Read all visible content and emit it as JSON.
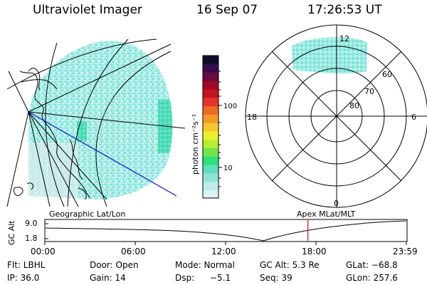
{
  "header": {
    "instrument": "Ultraviolet Imager",
    "date": "16 Sep 07",
    "time": "17:26:53 UT"
  },
  "colorbar": {
    "unit_label": "photon cm⁻²s⁻¹",
    "ticks": [
      "100",
      "10"
    ],
    "colors": [
      "#d8f4f4",
      "#bdeceb",
      "#90e2d9",
      "#5fdec0",
      "#2fe07a",
      "#6ee64a",
      "#b4ee2e",
      "#ecf02a",
      "#f7c82a",
      "#f5982a",
      "#ee6a22",
      "#e23428",
      "#c41422",
      "#a00828",
      "#6a0a3e",
      "#3a0c52",
      "#120c2c"
    ]
  },
  "polar_plot": {
    "labels": {
      "top": "12",
      "left": "18",
      "right": "6",
      "bottom": "0"
    },
    "lat_labels": [
      "60",
      "70",
      "80"
    ]
  },
  "timeline": {
    "left_title": "Geographic Lat/Lon",
    "right_title": "Apex MLat/MLT",
    "y_axis_label": "GC Alt",
    "y_ticks": [
      "9.0",
      "1.8"
    ],
    "x_ticks": [
      "00:00",
      "06:00",
      "12:00",
      "18:00",
      "23:59"
    ],
    "marker_time_hours": 17.45
  },
  "info": {
    "row1": {
      "flt": "Flt: LBHL",
      "door": "Door: Open",
      "mode": "Mode: Normal",
      "gc_alt": "GC Alt: 5.3 Re",
      "glat": "GLat: −68.8"
    },
    "row2": {
      "ip": "IP: 36.0",
      "gain": "Gain: 14",
      "dsp": "Dsp:",
      "dsp_value": "−5.1",
      "seq": "Seq: 39",
      "glon": "GLon: 257.6"
    }
  }
}
